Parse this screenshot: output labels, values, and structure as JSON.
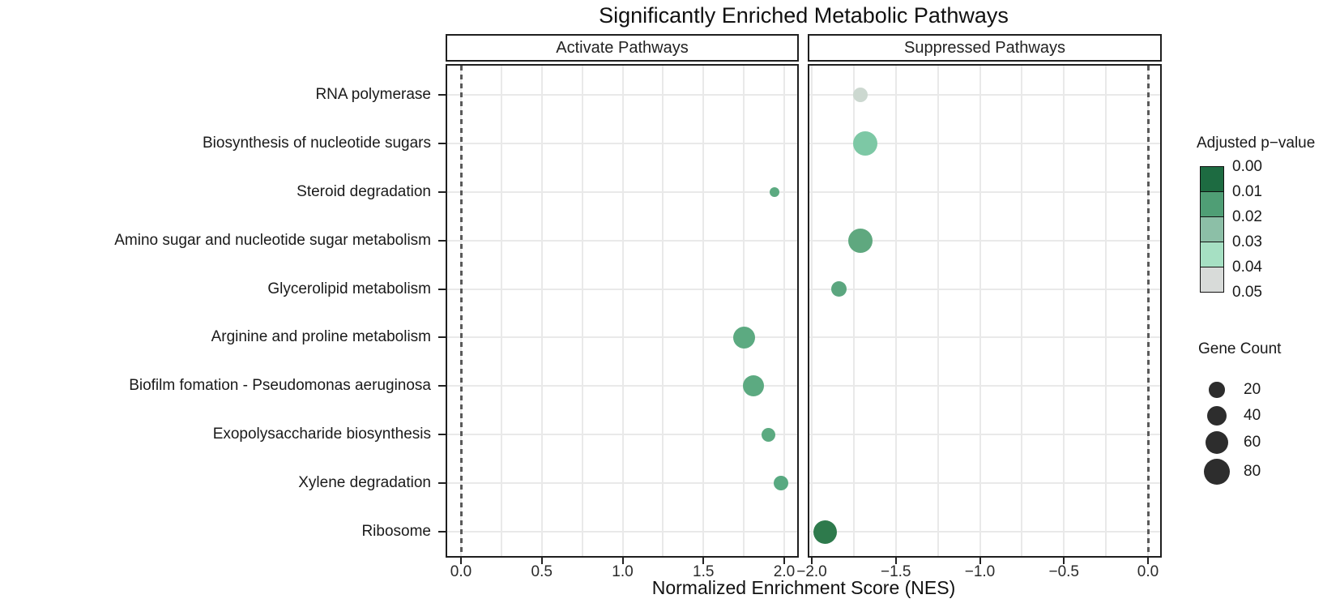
{
  "title": "Significantly Enriched Metabolic Pathways",
  "x_axis_label": "Normalized Enrichment Score (NES)",
  "colors": {
    "grid": "#e9e9e9",
    "panel_border": "#1f1f1f",
    "zero_line": "#5a5a5a",
    "text": "#1a1a1a",
    "size_legend_dot": "#2d2d2d"
  },
  "chart_data": {
    "type": "scatter",
    "title": "Significantly Enriched Metabolic Pathways",
    "xlabel": "Normalized Enrichment Score (NES)",
    "ylabel": "",
    "grid": "on",
    "legend_position": "right",
    "categories": [
      "RNA polymerase",
      "Biosynthesis of nucleotide sugars",
      "Steroid degradation",
      "Amino sugar and nucleotide sugar metabolism",
      "Glycerolipid metabolism",
      "Arginine and proline metabolism",
      "Biofilm fomation - Pseudomonas aeruginosa",
      "Exopolysaccharide biosynthesis",
      "Xylene degradation",
      "Ribosome"
    ],
    "facets": [
      {
        "label": "Activate Pathways",
        "xlim": [
          -0.09,
          2.09
        ],
        "zero_line": 0.0,
        "x_ticks": [
          {
            "value": 0.0,
            "label": "0.0"
          },
          {
            "value": 0.5,
            "label": "0.5"
          },
          {
            "value": 1.0,
            "label": "1.0"
          },
          {
            "value": 1.5,
            "label": "1.5"
          },
          {
            "value": 2.0,
            "label": "2.0"
          }
        ],
        "points": [
          {
            "pathway": "Steroid degradation",
            "nes": 1.94,
            "gene_count": 5,
            "adj_p": 0.02,
            "color": "#5caa81",
            "radius_px": 6
          },
          {
            "pathway": "Arginine and proline metabolism",
            "nes": 1.75,
            "gene_count": 50,
            "adj_p": 0.02,
            "color": "#5caa81",
            "radius_px": 13.5
          },
          {
            "pathway": "Biofilm fomation - Pseudomonas aeruginosa",
            "nes": 1.81,
            "gene_count": 45,
            "adj_p": 0.02,
            "color": "#5caa81",
            "radius_px": 13
          },
          {
            "pathway": "Exopolysaccharide biosynthesis",
            "nes": 1.9,
            "gene_count": 14,
            "adj_p": 0.02,
            "color": "#5caa81",
            "radius_px": 8.5
          },
          {
            "pathway": "Xylene degradation",
            "nes": 1.98,
            "gene_count": 16,
            "adj_p": 0.02,
            "color": "#58a981",
            "radius_px": 9
          }
        ]
      },
      {
        "label": "Suppressed Pathways",
        "xlim": [
          -2.02,
          0.08
        ],
        "zero_line": 0.0,
        "x_ticks": [
          {
            "value": -2.0,
            "label": "−2.0"
          },
          {
            "value": -1.5,
            "label": "−1.5"
          },
          {
            "value": -1.0,
            "label": "−1.0"
          },
          {
            "value": -0.5,
            "label": "−0.5"
          },
          {
            "value": 0.0,
            "label": "0.0"
          }
        ],
        "points": [
          {
            "pathway": "RNA polymerase",
            "nes": -1.71,
            "gene_count": 16,
            "adj_p": 0.047,
            "color": "#ccd8d0",
            "radius_px": 9
          },
          {
            "pathway": "Biosynthesis of nucleotide sugars",
            "nes": -1.68,
            "gene_count": 65,
            "adj_p": 0.028,
            "color": "#7dc8a5",
            "radius_px": 15
          },
          {
            "pathway": "Amino sugar and nucleotide sugar metabolism",
            "nes": -1.71,
            "gene_count": 65,
            "adj_p": 0.018,
            "color": "#5fa87f",
            "radius_px": 15
          },
          {
            "pathway": "Glycerolipid metabolism",
            "nes": -1.84,
            "gene_count": 18,
            "adj_p": 0.018,
            "color": "#5ba67f",
            "radius_px": 9.5
          },
          {
            "pathway": "Ribosome",
            "nes": -1.92,
            "gene_count": 62,
            "adj_p": 0.004,
            "color": "#2e7a4c",
            "radius_px": 14.5
          }
        ]
      }
    ],
    "legend": {
      "color": {
        "title": "Adjusted p−value",
        "tick_labels": [
          "0.00",
          "0.01",
          "0.02",
          "0.03",
          "0.04",
          "0.05"
        ],
        "segment_colors": [
          "#1d6b41",
          "#4f9e75",
          "#8cbfa7",
          "#a6e0c3",
          "#d8dbd9"
        ]
      },
      "size": {
        "title": "Gene Count",
        "entries": [
          {
            "label": "20",
            "radius_px": 9.7
          },
          {
            "label": "40",
            "radius_px": 12.3
          },
          {
            "label": "60",
            "radius_px": 14.3
          },
          {
            "label": "80",
            "radius_px": 16
          }
        ]
      }
    }
  }
}
